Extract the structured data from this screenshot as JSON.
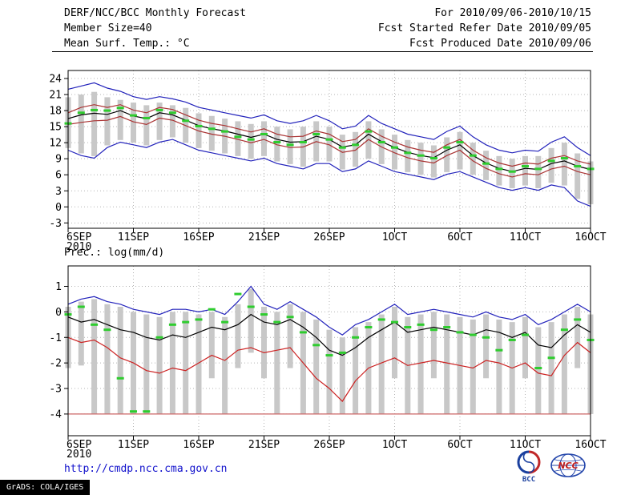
{
  "header": {
    "title": "DERF/NCC/BCC Monthly Forecast",
    "member_size": "Member Size=40",
    "variable": "Mean Surf. Temp.: °C",
    "for_range": "For 2010/09/06-2010/10/15",
    "refer_date": "Fcst Started Refer Date 2010/09/05",
    "produced_date": "Fcst Produced Date 2010/09/06"
  },
  "footer": {
    "url": "http://cmdp.ncc.cma.gov.cn",
    "grads_credit": "GrADS: COLA/IGES",
    "bcc_label": "BCC",
    "ncc_label": "NCC"
  },
  "chart_data": [
    {
      "type": "line",
      "title": "Mean Surf. Temp.: °C",
      "x_tick_labels": [
        "6SEP",
        "11SEP",
        "16SEP",
        "21SEP",
        "26SEP",
        "1OCT",
        "6OCT",
        "11OCT",
        "16OCT"
      ],
      "x_sublabel": "2010",
      "n_points": 41,
      "ylim": [
        -4,
        25.5
      ],
      "yticks": [
        -3,
        0,
        3,
        6,
        9,
        12,
        15,
        18,
        21,
        24
      ],
      "grid": true,
      "legend_position": "none",
      "bars": {
        "name": "ensemble-member-spread",
        "color": "#c8c8c8",
        "low": [
          11.0,
          10.0,
          9.5,
          11.5,
          12.5,
          12.0,
          11.5,
          12.5,
          13.0,
          12.0,
          11.0,
          10.5,
          10.0,
          9.5,
          9.0,
          9.5,
          8.5,
          8.0,
          7.5,
          8.5,
          8.5,
          7.0,
          7.5,
          9.0,
          8.0,
          7.0,
          6.5,
          6.0,
          5.5,
          6.5,
          7.0,
          6.0,
          5.0,
          4.0,
          3.5,
          4.0,
          3.5,
          4.5,
          4.0,
          1.5,
          0.5
        ],
        "high": [
          20.5,
          21.0,
          21.5,
          20.5,
          20.0,
          19.5,
          19.0,
          19.5,
          19.0,
          18.5,
          17.5,
          17.0,
          16.5,
          16.0,
          15.5,
          16.0,
          15.0,
          14.5,
          15.0,
          16.0,
          15.0,
          13.5,
          14.0,
          16.0,
          14.5,
          13.5,
          12.5,
          12.0,
          11.5,
          13.0,
          14.0,
          12.0,
          10.5,
          9.5,
          9.0,
          9.5,
          9.5,
          11.0,
          12.0,
          10.0,
          8.5
        ]
      },
      "series": [
        {
          "name": "ensemble-max",
          "color": "#2222bb",
          "values": [
            22.0,
            22.6,
            23.2,
            22.2,
            21.6,
            20.6,
            20.1,
            20.6,
            20.2,
            19.6,
            18.6,
            18.1,
            17.6,
            17.1,
            16.6,
            17.2,
            16.1,
            15.6,
            16.1,
            17.1,
            16.1,
            14.6,
            15.1,
            17.1,
            15.6,
            14.6,
            13.6,
            13.1,
            12.6,
            14.1,
            15.1,
            13.1,
            11.6,
            10.6,
            10.1,
            10.6,
            10.4,
            12.1,
            13.1,
            11.1,
            9.6
          ]
        },
        {
          "name": "ensemble-min",
          "color": "#2222bb",
          "values": [
            10.6,
            9.6,
            9.1,
            11.1,
            12.1,
            11.6,
            11.1,
            12.1,
            12.6,
            11.6,
            10.6,
            10.1,
            9.6,
            9.1,
            8.6,
            9.1,
            8.1,
            7.6,
            7.1,
            8.1,
            8.1,
            6.6,
            7.1,
            8.6,
            7.6,
            6.6,
            6.1,
            5.6,
            5.1,
            6.1,
            6.6,
            5.6,
            4.6,
            3.6,
            3.1,
            3.6,
            3.1,
            4.1,
            3.6,
            1.1,
            0.1
          ]
        },
        {
          "name": "spread-upper",
          "color": "#aa3333",
          "values": [
            17.6,
            18.6,
            19.1,
            18.6,
            19.1,
            18.1,
            17.6,
            18.6,
            18.2,
            17.2,
            16.2,
            15.6,
            15.2,
            14.6,
            14.0,
            14.6,
            13.6,
            13.1,
            13.2,
            14.2,
            13.6,
            12.2,
            12.6,
            14.6,
            13.2,
            12.1,
            11.2,
            10.6,
            10.2,
            11.6,
            12.6,
            10.6,
            9.2,
            8.2,
            7.6,
            8.2,
            8.0,
            9.1,
            9.6,
            8.6,
            8.0
          ]
        },
        {
          "name": "spread-lower",
          "color": "#aa3333",
          "values": [
            15.4,
            15.8,
            16.1,
            16.2,
            16.9,
            15.9,
            15.4,
            16.6,
            16.2,
            15.2,
            14.2,
            13.6,
            13.2,
            12.6,
            12.0,
            12.6,
            11.6,
            11.1,
            11.2,
            12.2,
            11.6,
            10.2,
            10.6,
            12.6,
            11.2,
            10.1,
            9.2,
            8.6,
            8.2,
            9.6,
            10.6,
            8.6,
            7.2,
            6.2,
            5.6,
            6.2,
            6.0,
            7.1,
            7.6,
            6.6,
            6.0
          ]
        },
        {
          "name": "ensemble-mean",
          "color": "#000000",
          "values": [
            16.5,
            17.2,
            17.5,
            17.3,
            18.0,
            17.0,
            16.5,
            17.6,
            17.2,
            16.2,
            15.2,
            14.6,
            14.2,
            13.6,
            13.0,
            13.6,
            12.6,
            12.1,
            12.2,
            13.2,
            12.6,
            11.2,
            11.6,
            13.6,
            12.2,
            11.1,
            10.2,
            9.6,
            9.2,
            10.6,
            11.6,
            9.6,
            8.2,
            7.2,
            6.6,
            7.2,
            7.0,
            8.1,
            8.6,
            7.6,
            7.0
          ]
        }
      ],
      "markers": {
        "name": "control-observation",
        "color": "#2ecc2e",
        "values": [
          15.6,
          17.6,
          18.1,
          18.0,
          18.5,
          17.1,
          16.6,
          18.1,
          17.6,
          16.1,
          15.1,
          14.6,
          14.1,
          13.1,
          12.6,
          13.6,
          12.1,
          11.6,
          12.1,
          13.6,
          12.6,
          11.1,
          11.6,
          14.1,
          12.1,
          11.1,
          10.1,
          9.6,
          9.1,
          11.1,
          12.1,
          9.6,
          8.1,
          7.1,
          6.6,
          7.6,
          7.1,
          8.6,
          9.1,
          7.6,
          7.1
        ]
      }
    },
    {
      "type": "line",
      "title": "Prec.: log(mm/d)",
      "x_tick_labels": [
        "6SEP",
        "11SEP",
        "16SEP",
        "21SEP",
        "26SEP",
        "1OCT",
        "6OCT",
        "11OCT",
        "16OCT"
      ],
      "x_sublabel": "2010",
      "n_points": 41,
      "ylim": [
        -4.85,
        1.8
      ],
      "yticks": [
        -4,
        -3,
        -2,
        -1,
        0,
        1
      ],
      "grid": true,
      "legend_position": "none",
      "hline": {
        "name": "zero-precip-floor",
        "y": -4,
        "color": "#cc6666"
      },
      "bars": {
        "name": "ensemble-member-spread",
        "color": "#c8c8c8",
        "low": [
          -2.2,
          -2.1,
          -4.0,
          -4.0,
          -4.0,
          -4.0,
          -4.0,
          -4.0,
          -4.0,
          -4.0,
          -4.0,
          -2.6,
          -4.0,
          -2.2,
          -1.6,
          -2.6,
          -4.0,
          -2.2,
          -4.0,
          -4.0,
          -4.0,
          -4.0,
          -4.0,
          -4.0,
          -4.0,
          -2.6,
          -4.0,
          -4.0,
          -2.6,
          -4.0,
          -4.0,
          -4.0,
          -2.6,
          -4.0,
          -4.0,
          -2.6,
          -4.0,
          -4.0,
          -4.0,
          -2.2,
          -4.0
        ],
        "high": [
          0.2,
          0.4,
          0.5,
          0.3,
          0.2,
          0.0,
          -0.1,
          -0.2,
          0.0,
          0.0,
          -0.1,
          0.0,
          -0.2,
          0.3,
          0.9,
          0.2,
          0.0,
          0.3,
          0.0,
          -0.3,
          -0.7,
          -1.0,
          -0.6,
          -0.4,
          -0.1,
          0.2,
          -0.2,
          -0.1,
          0.0,
          -0.1,
          -0.2,
          -0.3,
          -0.1,
          -0.3,
          -0.4,
          -0.2,
          -0.6,
          -0.4,
          -0.1,
          0.2,
          -0.1
        ]
      },
      "series": [
        {
          "name": "ensemble-max",
          "color": "#2222bb",
          "values": [
            0.3,
            0.5,
            0.6,
            0.4,
            0.3,
            0.1,
            0.0,
            -0.1,
            0.1,
            0.1,
            0.0,
            0.1,
            -0.1,
            0.4,
            1.0,
            0.3,
            0.1,
            0.4,
            0.1,
            -0.2,
            -0.6,
            -0.9,
            -0.5,
            -0.3,
            0.0,
            0.3,
            -0.1,
            0.0,
            0.1,
            0.0,
            -0.1,
            -0.2,
            0.0,
            -0.2,
            -0.3,
            -0.1,
            -0.5,
            -0.3,
            0.0,
            0.3,
            0.0
          ]
        },
        {
          "name": "spread-lower",
          "color": "#cc2222",
          "values": [
            -1.0,
            -1.2,
            -1.1,
            -1.4,
            -1.8,
            -2.0,
            -2.3,
            -2.4,
            -2.2,
            -2.3,
            -2.0,
            -1.7,
            -1.9,
            -1.5,
            -1.4,
            -1.6,
            -1.5,
            -1.4,
            -2.0,
            -2.6,
            -3.0,
            -3.5,
            -2.7,
            -2.2,
            -2.0,
            -1.8,
            -2.1,
            -2.0,
            -1.9,
            -2.0,
            -2.1,
            -2.2,
            -1.9,
            -2.0,
            -2.2,
            -2.0,
            -2.4,
            -2.5,
            -1.7,
            -1.2,
            -1.6
          ]
        },
        {
          "name": "ensemble-mean",
          "color": "#000000",
          "values": [
            -0.2,
            -0.4,
            -0.3,
            -0.5,
            -0.7,
            -0.8,
            -1.0,
            -1.1,
            -0.9,
            -1.0,
            -0.8,
            -0.6,
            -0.7,
            -0.5,
            -0.1,
            -0.4,
            -0.5,
            -0.3,
            -0.6,
            -1.0,
            -1.5,
            -1.7,
            -1.4,
            -1.0,
            -0.7,
            -0.4,
            -0.8,
            -0.7,
            -0.6,
            -0.7,
            -0.8,
            -0.9,
            -0.7,
            -0.8,
            -1.0,
            -0.8,
            -1.3,
            -1.4,
            -0.9,
            -0.5,
            -0.8
          ]
        }
      ],
      "markers": {
        "name": "control-observation",
        "color": "#2ecc2e",
        "values": [
          -0.1,
          0.2,
          -0.5,
          -0.7,
          -2.6,
          -3.9,
          -3.9,
          -1.0,
          -0.5,
          -0.4,
          -0.3,
          0.1,
          -0.4,
          0.7,
          0.2,
          -0.1,
          -0.4,
          -0.2,
          -0.8,
          -1.3,
          -1.7,
          -1.6,
          -1.0,
          -0.6,
          -0.3,
          -0.4,
          -0.6,
          -0.5,
          -0.7,
          -0.6,
          -0.8,
          -0.9,
          -1.0,
          -1.5,
          -1.1,
          -0.9,
          -2.2,
          -1.8,
          -0.7,
          -0.3,
          -1.1
        ]
      }
    }
  ]
}
